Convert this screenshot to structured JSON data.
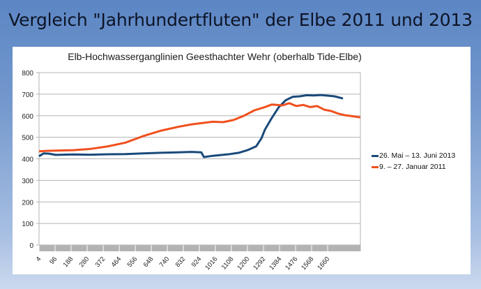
{
  "slide": {
    "title": "Vergleich \"Jahrhundertfluten\" der Elbe 2011 und 2013"
  },
  "chart_data": {
    "type": "line",
    "title": "Elb-Hochwasserganglinien Geesthachter Wehr (oberhalb Tide-Elbe)",
    "xlabel": "",
    "ylabel": "",
    "ylim": [
      0,
      800
    ],
    "yticks": [
      0,
      100,
      200,
      300,
      400,
      500,
      600,
      700,
      800
    ],
    "xlim": [
      4,
      1848
    ],
    "xticks": [
      4,
      96,
      188,
      280,
      372,
      464,
      556,
      648,
      740,
      832,
      924,
      1016,
      1108,
      1200,
      1292,
      1384,
      1476,
      1568,
      1660
    ],
    "grid": true,
    "legend_position": "right",
    "series": [
      {
        "name": "26. Mai – 13.  Juni 2013",
        "color": "#1a4a7a",
        "x": [
          4,
          30,
          60,
          100,
          200,
          300,
          400,
          500,
          600,
          700,
          800,
          880,
          935,
          950,
          1000,
          1100,
          1150,
          1200,
          1250,
          1280,
          1300,
          1340,
          1380,
          1420,
          1460,
          1500,
          1540,
          1580,
          1620,
          1660,
          1700,
          1748
        ],
        "y": [
          412,
          425,
          424,
          418,
          420,
          419,
          421,
          422,
          425,
          428,
          430,
          432,
          430,
          408,
          414,
          422,
          428,
          440,
          458,
          495,
          535,
          590,
          640,
          672,
          688,
          690,
          695,
          694,
          696,
          693,
          690,
          680
        ]
      },
      {
        "name": "9. – 27. Januar 2011",
        "color": "#f0501e",
        "x": [
          4,
          50,
          100,
          200,
          300,
          400,
          500,
          600,
          700,
          800,
          880,
          940,
          1000,
          1060,
          1120,
          1180,
          1240,
          1300,
          1340,
          1400,
          1440,
          1480,
          1520,
          1560,
          1600,
          1640,
          1680,
          1720,
          1760,
          1800,
          1848
        ],
        "y": [
          435,
          437,
          438,
          440,
          446,
          458,
          475,
          505,
          530,
          548,
          560,
          566,
          572,
          570,
          580,
          600,
          625,
          640,
          652,
          648,
          658,
          645,
          650,
          640,
          645,
          628,
          622,
          610,
          602,
          598,
          592
        ]
      }
    ]
  }
}
